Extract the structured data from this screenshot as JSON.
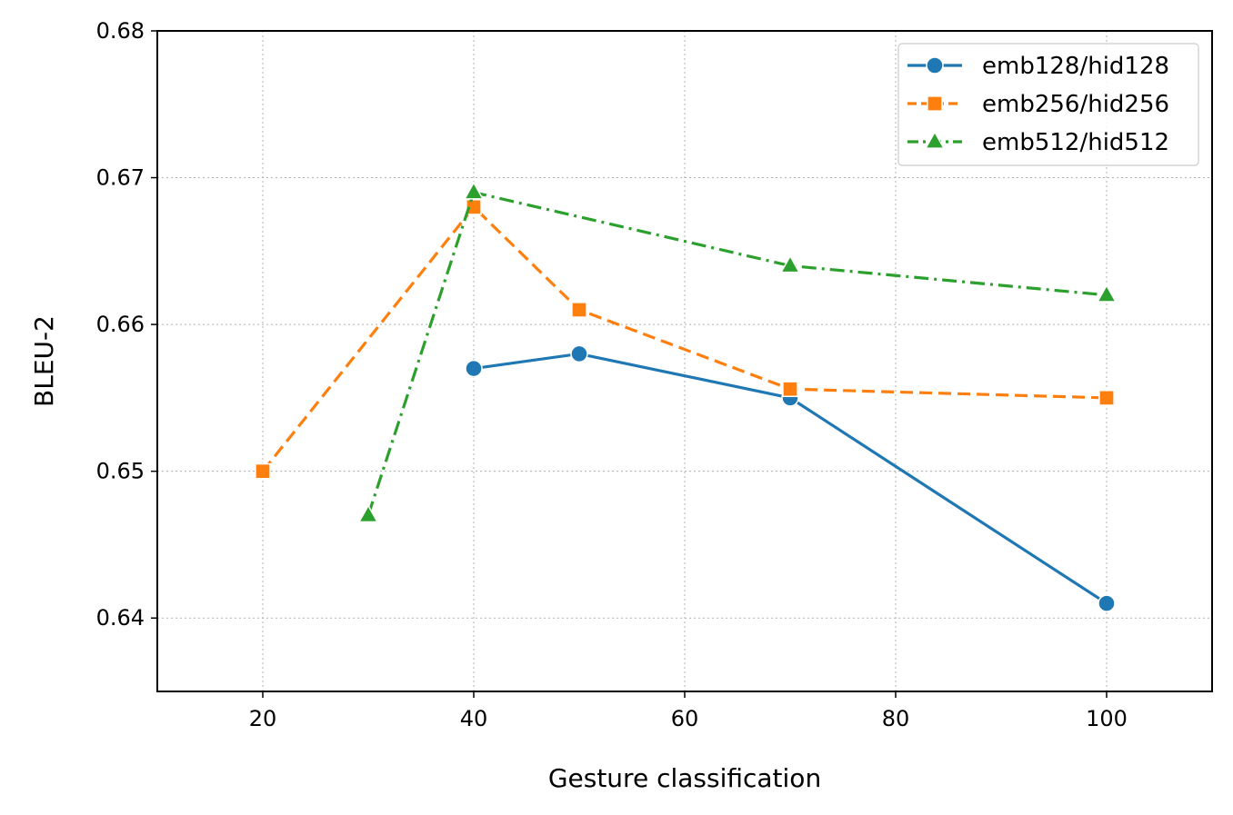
{
  "chart_data": {
    "type": "line",
    "title": "",
    "xlabel": "Gesture classification",
    "ylabel": "BLEU-2",
    "xlim": [
      10,
      110
    ],
    "ylim": [
      0.635,
      0.68
    ],
    "x_ticks": [
      "20",
      "40",
      "60",
      "80",
      "100"
    ],
    "y_ticks": [
      "0.64",
      "0.65",
      "0.66",
      "0.67",
      "0.68"
    ],
    "grid": true,
    "legend_position": "top-right",
    "series": [
      {
        "name": "emb128/hid128",
        "color": "#1f77b4",
        "marker": "circle",
        "line_style": "solid",
        "x": [
          40,
          50,
          70,
          100
        ],
        "y": [
          0.657,
          0.658,
          0.655,
          0.641
        ]
      },
      {
        "name": "emb256/hid256",
        "color": "#ff7f0e",
        "marker": "square",
        "line_style": "dashed",
        "x": [
          20,
          40,
          50,
          70,
          100
        ],
        "y": [
          0.65,
          0.668,
          0.661,
          0.6556,
          0.655
        ]
      },
      {
        "name": "emb512/hid512",
        "color": "#2ca02c",
        "marker": "triangle",
        "line_style": "dashdot",
        "x": [
          30,
          40,
          70,
          100
        ],
        "y": [
          0.647,
          0.669,
          0.664,
          0.662
        ]
      }
    ]
  }
}
